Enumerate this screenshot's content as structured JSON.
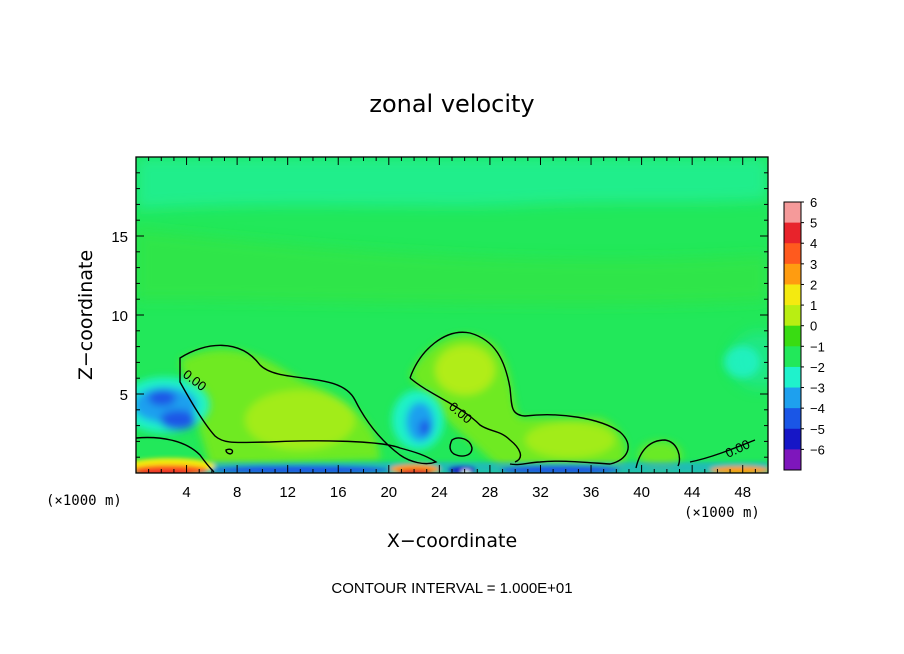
{
  "chart_data": {
    "type": "heatmap",
    "title": "zonal velocity",
    "xlabel": "X−coordinate",
    "ylabel": "Z−coordinate",
    "x_unit": "(×1000 m)",
    "y_unit": "(×1000 m)",
    "xlim": [
      0,
      50
    ],
    "ylim": [
      0,
      20
    ],
    "x_ticks": [
      4,
      8,
      12,
      16,
      20,
      24,
      28,
      32,
      36,
      40,
      44,
      48
    ],
    "x_tick_labels": [
      "4",
      "8",
      "12",
      "16",
      "20",
      "24",
      "28",
      "32",
      "36",
      "40",
      "44",
      "48"
    ],
    "y_ticks": [
      5,
      10,
      15
    ],
    "y_tick_labels": [
      "5",
      "10",
      "15"
    ],
    "colorbar": {
      "levels": [
        6,
        5,
        4,
        3,
        2,
        1,
        0,
        -1,
        -2,
        -3,
        -4,
        -5,
        -6
      ],
      "labels": [
        "6",
        "5",
        "4",
        "3",
        "2",
        "1",
        "0",
        "−1",
        "−2",
        "−3",
        "−4",
        "−5",
        "−6"
      ],
      "colors": [
        "#f59a9a",
        "#e8232b",
        "#ff5a1e",
        "#ff9c10",
        "#f4ea10",
        "#b9ee12",
        "#39dc12",
        "#22e85a",
        "#1ff2cc",
        "#1ea0ee",
        "#1a56e6",
        "#1616c6",
        "#7e16bc"
      ]
    },
    "contours": [
      {
        "value": 0.0,
        "label": "0.00",
        "near": [
          4,
          7
        ]
      },
      {
        "value": 0.0,
        "label": "0.00",
        "near": [
          24,
          4.5
        ]
      },
      {
        "value": 0.0,
        "label": "0.00",
        "near": [
          47,
          2.3
        ]
      }
    ],
    "contour_interval_text": "CONTOUR INTERVAL = 1.000E+01"
  }
}
